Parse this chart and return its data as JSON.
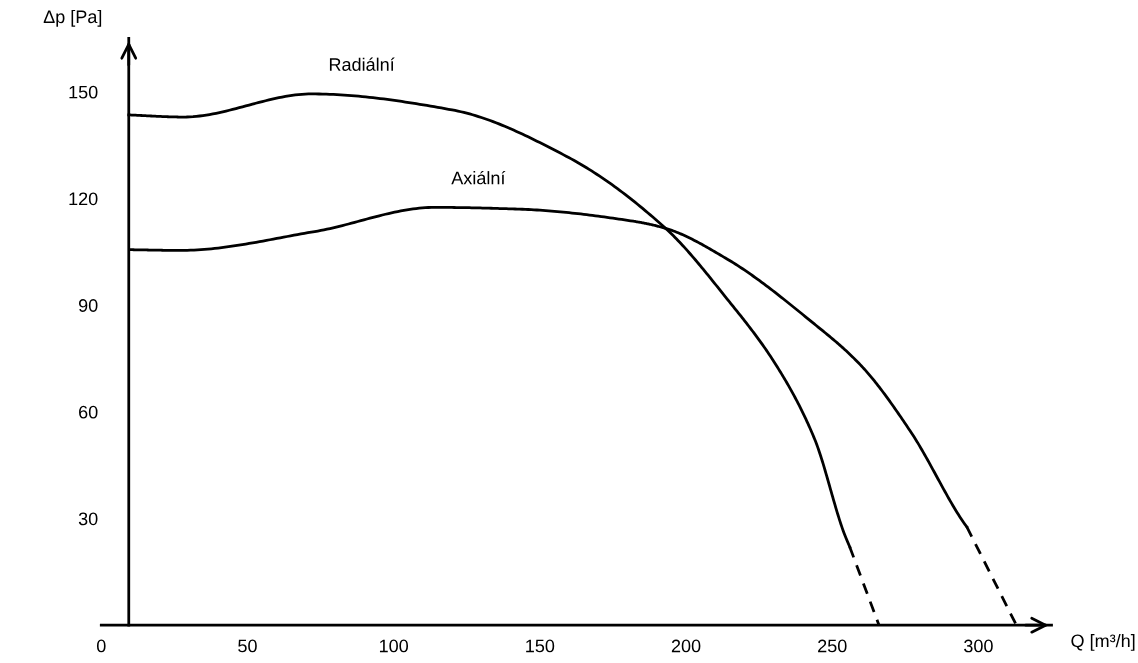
{
  "chart_data": {
    "type": "line",
    "xlabel": "Q [m³/h]",
    "ylabel": "Δp [Pa]",
    "xlim": [
      0,
      325
    ],
    "ylim": [
      0,
      165
    ],
    "xticks": [
      0,
      50,
      100,
      150,
      200,
      250,
      300
    ],
    "yticks": [
      30,
      60,
      90,
      120,
      150
    ],
    "grid": false,
    "marker": "none",
    "series": [
      {
        "name": "Radiální",
        "color": "#000000",
        "line_style": "solid",
        "x": [
          9.4,
          28,
          72,
          120,
          159,
          193,
          214,
          231,
          244,
          254,
          256
        ],
        "values": [
          143.5,
          142.9,
          149.4,
          144.9,
          131.9,
          111.6,
          91.8,
          72.9,
          52.3,
          26,
          22
        ]
      },
      {
        "color": "#000000",
        "line_style": "dashed",
        "x": [
          256,
          266
        ],
        "values": [
          22,
          0
        ]
      },
      {
        "name": "Axiální",
        "color": "#000000",
        "line_style": "solid",
        "x": [
          9.7,
          27,
          73,
          114,
          143,
          182,
          193,
          214,
          243,
          260,
          277,
          295,
          296
        ],
        "values": [
          105.6,
          105.4,
          110.7,
          117.5,
          117,
          113.6,
          111.6,
          103,
          85.3,
          72.9,
          54.2,
          28.8,
          27.7
        ]
      },
      {
        "color": "#000000",
        "line_style": "dashed",
        "x": [
          296,
          313
        ],
        "values": [
          27.7,
          0
        ]
      }
    ]
  }
}
